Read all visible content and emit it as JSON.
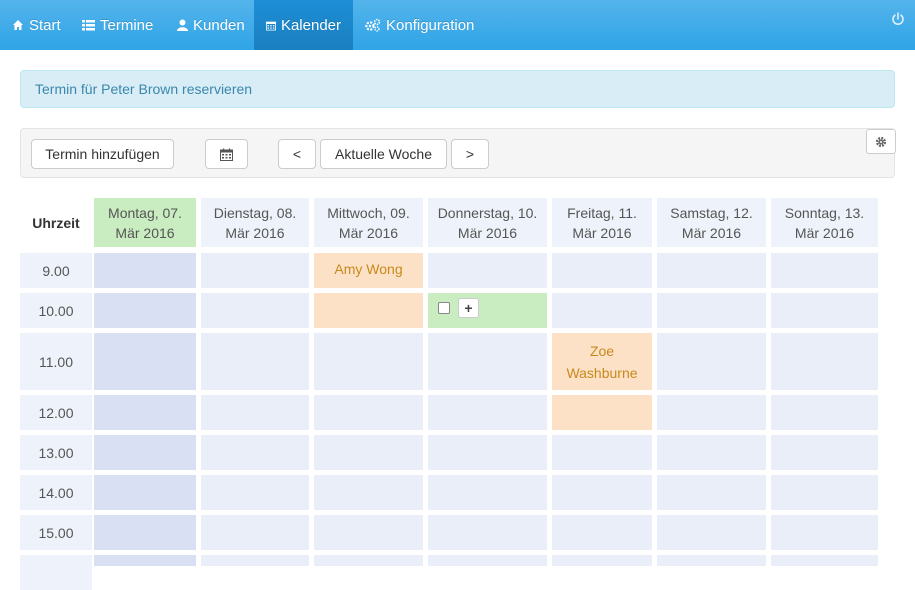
{
  "nav": {
    "items": [
      {
        "label": "Start",
        "icon": "home-icon"
      },
      {
        "label": "Termine",
        "icon": "list-icon"
      },
      {
        "label": "Kunden",
        "icon": "user-icon"
      },
      {
        "label": "Kalender",
        "icon": "calendar-icon",
        "active": true
      },
      {
        "label": "Konfiguration",
        "icon": "cogs-icon"
      }
    ],
    "power_icon": "power-icon"
  },
  "alert": {
    "text": "Termin für Peter Brown reservieren"
  },
  "toolbar": {
    "add_label": "Termin hinzufügen",
    "prev_label": "<",
    "current_week_label": "Aktuelle Woche",
    "next_label": ">"
  },
  "calendar": {
    "time_header": "Uhrzeit",
    "days": [
      {
        "line1": "Montag, 07.",
        "line2": "Mär 2016",
        "today": true
      },
      {
        "line1": "Dienstag, 08.",
        "line2": "Mär 2016"
      },
      {
        "line1": "Mittwoch, 09.",
        "line2": "Mär 2016"
      },
      {
        "line1": "Donnerstag, 10.",
        "line2": "Mär 2016"
      },
      {
        "line1": "Freitag, 11.",
        "line2": "Mär 2016"
      },
      {
        "line1": "Samstag, 12.",
        "line2": "Mär 2016"
      },
      {
        "line1": "Sonntag, 13.",
        "line2": "Mär 2016"
      }
    ],
    "times": [
      "9.00",
      "10.00",
      "11.00",
      "12.00",
      "13.00",
      "14.00",
      "15.00",
      ""
    ],
    "appointments": [
      {
        "name": "Amy Wong",
        "day": "Mittwoch, 09.",
        "start": "9.00"
      },
      {
        "name": "Zoe Washburne",
        "day": "Freitag, 11.",
        "start": "11.00"
      }
    ],
    "plus_label": "+"
  },
  "colors": {
    "navbar": "#2fa4e7",
    "active_nav": "#1b7fc0",
    "today": "#c9ecc0",
    "appointment": "#fde1c7",
    "appointment_text": "#c78a1a"
  }
}
